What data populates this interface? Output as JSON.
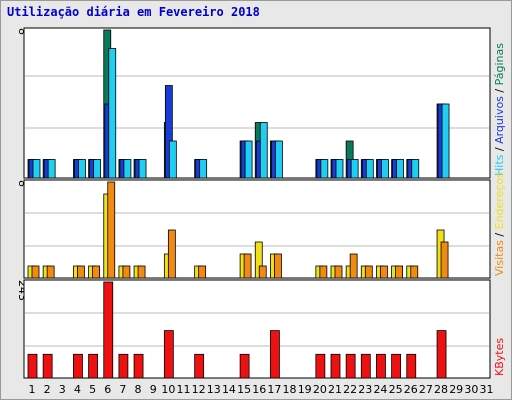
{
  "window": {
    "title": "Utilização diária em Fevereiro 2018"
  },
  "colors": {
    "background": "#e8e8e8",
    "plot": "#ffffff",
    "grid": "#bbbbbb",
    "hits": "#0b7a5a",
    "files": "#1a3cd6",
    "pages": "#1fcef0",
    "visits": "#f0e01a",
    "sites": "#f08a12",
    "kbytes": "#ee1111",
    "weekend_label": "#0b7a5a",
    "normal_label": "#000000"
  },
  "chart_data": [
    {
      "type": "bar",
      "name": "top",
      "title": "Utilização diária em Fevereiro 2018",
      "ymax_label": "8",
      "ylim": [
        0,
        8
      ],
      "categories": [
        "1",
        "2",
        "3",
        "4",
        "5",
        "6",
        "7",
        "8",
        "9",
        "10",
        "11",
        "12",
        "13",
        "14",
        "15",
        "16",
        "17",
        "18",
        "19",
        "20",
        "21",
        "22",
        "23",
        "24",
        "25",
        "26",
        "27",
        "28",
        "29",
        "30",
        "31"
      ],
      "weekend": [
        "3",
        "4",
        "10",
        "11",
        "17",
        "18",
        "24",
        "25",
        "31"
      ],
      "legend": [
        "Hits",
        "Arquivos",
        "Páginas"
      ],
      "series": [
        {
          "name": "Hits",
          "values": [
            1,
            1,
            0,
            1,
            1,
            8,
            1,
            1,
            0,
            3,
            0,
            1,
            0,
            0,
            2,
            3,
            2,
            0,
            0,
            1,
            1,
            2,
            1,
            1,
            1,
            1,
            0,
            4,
            0,
            0,
            0
          ]
        },
        {
          "name": "Arquivos",
          "values": [
            1,
            1,
            0,
            1,
            1,
            4,
            1,
            1,
            0,
            5,
            0,
            1,
            0,
            0,
            2,
            2,
            2,
            0,
            0,
            1,
            1,
            1,
            1,
            1,
            1,
            1,
            0,
            4,
            0,
            0,
            0
          ]
        },
        {
          "name": "Páginas",
          "values": [
            1,
            1,
            0,
            1,
            1,
            7,
            1,
            1,
            0,
            2,
            0,
            1,
            0,
            0,
            2,
            3,
            2,
            0,
            0,
            1,
            1,
            1,
            1,
            1,
            1,
            1,
            0,
            4,
            0,
            0,
            0
          ]
        }
      ]
    },
    {
      "type": "bar",
      "name": "middle",
      "ymax_label": "8",
      "ylim": [
        0,
        8
      ],
      "legend": [
        "Visitas",
        "Endereços"
      ],
      "series": [
        {
          "name": "Visitas",
          "values": [
            1,
            1,
            0,
            1,
            1,
            7,
            1,
            1,
            0,
            2,
            0,
            1,
            0,
            0,
            2,
            3,
            2,
            0,
            0,
            1,
            1,
            1,
            1,
            1,
            1,
            1,
            0,
            4,
            0,
            0,
            0
          ]
        },
        {
          "name": "Endereços",
          "values": [
            1,
            1,
            0,
            1,
            1,
            8,
            1,
            1,
            0,
            4,
            0,
            1,
            0,
            0,
            2,
            1,
            2,
            0,
            0,
            1,
            1,
            2,
            1,
            1,
            1,
            1,
            0,
            3,
            0,
            0,
            0
          ]
        }
      ]
    },
    {
      "type": "bar",
      "name": "bottom",
      "ymax_label": "243",
      "ylim": [
        0,
        243
      ],
      "legend": [
        "KBytes"
      ],
      "series": [
        {
          "name": "KBytes",
          "values": [
            60,
            60,
            0,
            60,
            60,
            243,
            60,
            60,
            0,
            120,
            0,
            60,
            0,
            0,
            60,
            0,
            120,
            0,
            0,
            60,
            60,
            60,
            60,
            60,
            60,
            60,
            0,
            120,
            0,
            0,
            0
          ]
        }
      ]
    }
  ]
}
